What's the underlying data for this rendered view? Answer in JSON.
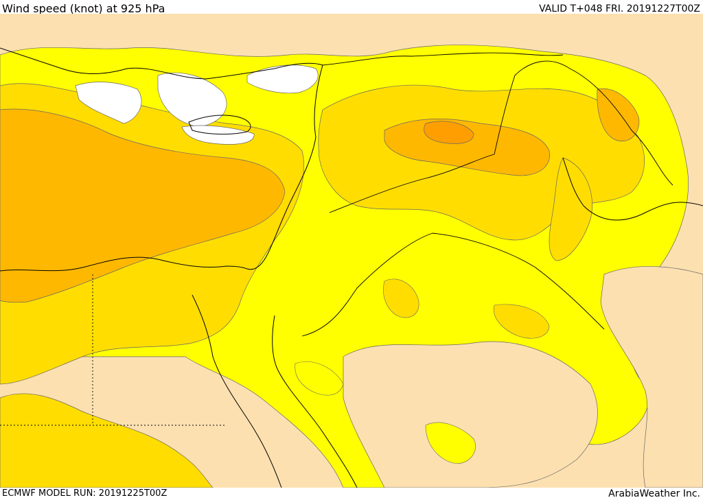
{
  "header": {
    "title": "Wind speed (knot) at 925 hPa",
    "valid": "VALID T+048 FRI. 20191227T00Z"
  },
  "footer": {
    "run": "ECMWF MODEL RUN: 20191225T00Z",
    "credit": "ArabiaWeather Inc."
  },
  "colors": {
    "level_calm": "#FFFFFF",
    "level_1": "#FDE0B0",
    "level_2": "#FFFF00",
    "level_3": "#FFDD00",
    "level_4": "#FFB800",
    "level_5": "#FF9E00",
    "contour": "#555555",
    "border": "#000000",
    "coastline": "#000000"
  }
}
